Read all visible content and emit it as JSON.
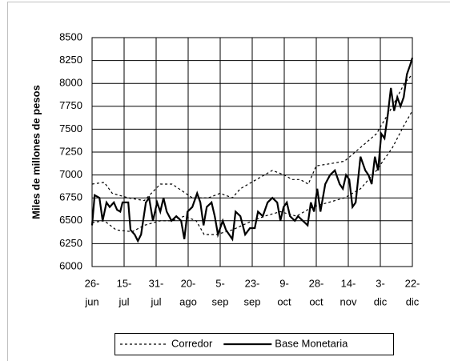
{
  "chart_data": {
    "type": "line",
    "ylabel": "Miles de millones de pesos",
    "ylim": [
      6000,
      8500
    ],
    "yticks": [
      6000,
      6250,
      6500,
      6750,
      7000,
      7250,
      7500,
      7750,
      8000,
      8250,
      8500
    ],
    "xlim": [
      0,
      10
    ],
    "xticks": [
      {
        "value": 0,
        "label": [
          "26-",
          "jun"
        ]
      },
      {
        "value": 1,
        "label": [
          "15-",
          "jul"
        ]
      },
      {
        "value": 2,
        "label": [
          "31-",
          "jul"
        ]
      },
      {
        "value": 3,
        "label": [
          "20-",
          "ago"
        ]
      },
      {
        "value": 4,
        "label": [
          "5-",
          "sep"
        ]
      },
      {
        "value": 5,
        "label": [
          "23-",
          "sep"
        ]
      },
      {
        "value": 6,
        "label": [
          "9-",
          "oct"
        ]
      },
      {
        "value": 7,
        "label": [
          "28-",
          "oct"
        ]
      },
      {
        "value": 8,
        "label": [
          "14-",
          "nov"
        ]
      },
      {
        "value": 9,
        "label": [
          "3-",
          "dic"
        ]
      },
      {
        "value": 10,
        "label": [
          "22-",
          "dic"
        ]
      }
    ],
    "grid": true,
    "series": [
      {
        "name": "Corredor",
        "color": "#000000",
        "style": "dashed",
        "x": [
          0,
          0.38,
          0.63,
          1.13,
          1.63,
          2.13,
          2.5,
          3.13,
          3.63,
          4,
          4.38,
          4.63,
          5.13,
          5.63,
          6,
          6.25,
          6.5,
          6.75,
          7,
          7.38,
          7.88,
          8.38,
          8.88,
          9.38,
          9.75,
          10
        ],
        "values": [
          6900,
          6920,
          6800,
          6750,
          6720,
          6900,
          6900,
          6750,
          6750,
          6800,
          6750,
          6850,
          6950,
          7050,
          7000,
          6950,
          6950,
          6900,
          7100,
          7120,
          7150,
          7300,
          7450,
          7750,
          8000,
          8100
        ]
      },
      {
        "name": "Corredor",
        "color": "#000000",
        "style": "dashed",
        "x": [
          0,
          0.38,
          0.75,
          1.25,
          1.63,
          2.13,
          2.5,
          2.88,
          3.25,
          3.5,
          3.88,
          4.38,
          4.88,
          5.38,
          5.88,
          6.38,
          6.88,
          7.38,
          7.88,
          8.38,
          8.88,
          9.38,
          9.75,
          10
        ],
        "values": [
          6480,
          6500,
          6400,
          6380,
          6450,
          6500,
          6500,
          6550,
          6500,
          6350,
          6350,
          6400,
          6480,
          6550,
          6600,
          6550,
          6650,
          6700,
          6750,
          6850,
          7050,
          7300,
          7550,
          7700
        ]
      },
      {
        "name": "Base Monetaria",
        "color": "#000000",
        "style": "solid",
        "x": [
          0,
          0.08,
          0.23,
          0.33,
          0.45,
          0.55,
          0.68,
          0.78,
          0.88,
          0.95,
          1.13,
          1.2,
          1.33,
          1.43,
          1.53,
          1.68,
          1.78,
          1.9,
          2.03,
          2.13,
          2.23,
          2.33,
          2.48,
          2.63,
          2.78,
          2.88,
          2.98,
          3.13,
          3.28,
          3.38,
          3.48,
          3.58,
          3.73,
          3.83,
          3.93,
          4.08,
          4.18,
          4.38,
          4.48,
          4.63,
          4.78,
          4.93,
          5.08,
          5.18,
          5.33,
          5.48,
          5.63,
          5.78,
          5.88,
          5.98,
          6.08,
          6.18,
          6.33,
          6.43,
          6.58,
          6.73,
          6.83,
          6.93,
          7.03,
          7.13,
          7.28,
          7.43,
          7.58,
          7.73,
          7.83,
          7.93,
          8.03,
          8.13,
          8.23,
          8.38,
          8.53,
          8.63,
          8.73,
          8.83,
          8.93,
          9.03,
          9.13,
          9.23,
          9.33,
          9.43,
          9.53,
          9.63,
          9.73,
          9.83,
          9.93,
          10
        ],
        "values": [
          6450,
          6780,
          6750,
          6500,
          6700,
          6650,
          6700,
          6620,
          6600,
          6700,
          6700,
          6400,
          6350,
          6280,
          6350,
          6700,
          6750,
          6500,
          6700,
          6600,
          6750,
          6600,
          6500,
          6550,
          6500,
          6300,
          6600,
          6650,
          6800,
          6700,
          6450,
          6650,
          6700,
          6550,
          6350,
          6500,
          6400,
          6300,
          6600,
          6550,
          6350,
          6420,
          6420,
          6600,
          6550,
          6700,
          6750,
          6700,
          6500,
          6650,
          6700,
          6550,
          6500,
          6550,
          6500,
          6450,
          6700,
          6600,
          6850,
          6600,
          6900,
          7000,
          7050,
          6900,
          6850,
          7000,
          6950,
          6650,
          6700,
          7200,
          7050,
          7000,
          6900,
          7200,
          7050,
          7450,
          7400,
          7650,
          7950,
          7700,
          7850,
          7750,
          7850,
          8100,
          8200,
          8280
        ]
      }
    ]
  }
}
